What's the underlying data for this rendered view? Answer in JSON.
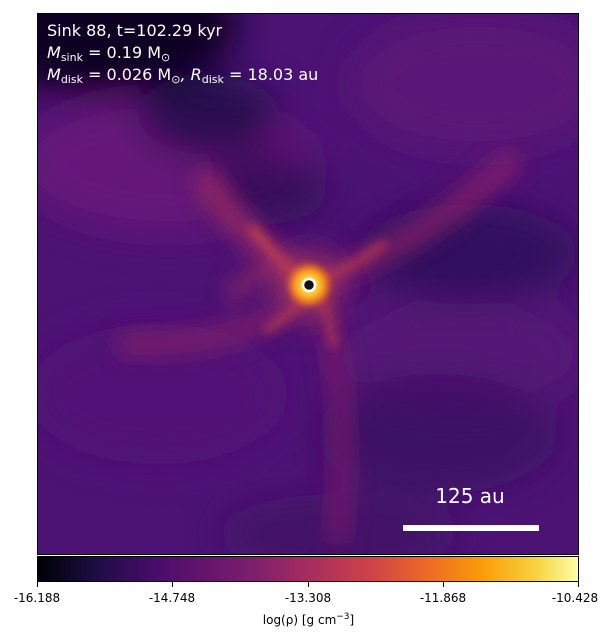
{
  "annotation": {
    "title": "Sink 88, t=102.29 kyr",
    "sink_mass_label": "M",
    "sink_mass_sub": "sink",
    "sink_mass_value": " = 0.19 M",
    "sink_mass_unit_sub": "⊙",
    "disk_mass_label": "M",
    "disk_mass_sub": "disk",
    "disk_mass_value": " = 0.026 M",
    "disk_mass_unit_sub": "⊙",
    "disk_radius_sep": ", R",
    "disk_radius_sub": "disk",
    "disk_radius_value": " = 18.03 au"
  },
  "scale_bar": {
    "label": "125 au"
  },
  "colorbar": {
    "ticks": [
      "-16.188",
      "-14.748",
      "-13.308",
      "-11.868",
      "-10.428"
    ],
    "label_prefix": "log(ρ) [g cm",
    "label_exp": "−3",
    "label_suffix": "]",
    "colormap": "inferno"
  },
  "colors": {
    "background_purple": "#4a1373",
    "core": "#fcffa4",
    "sink_ring": "#ffffff"
  }
}
